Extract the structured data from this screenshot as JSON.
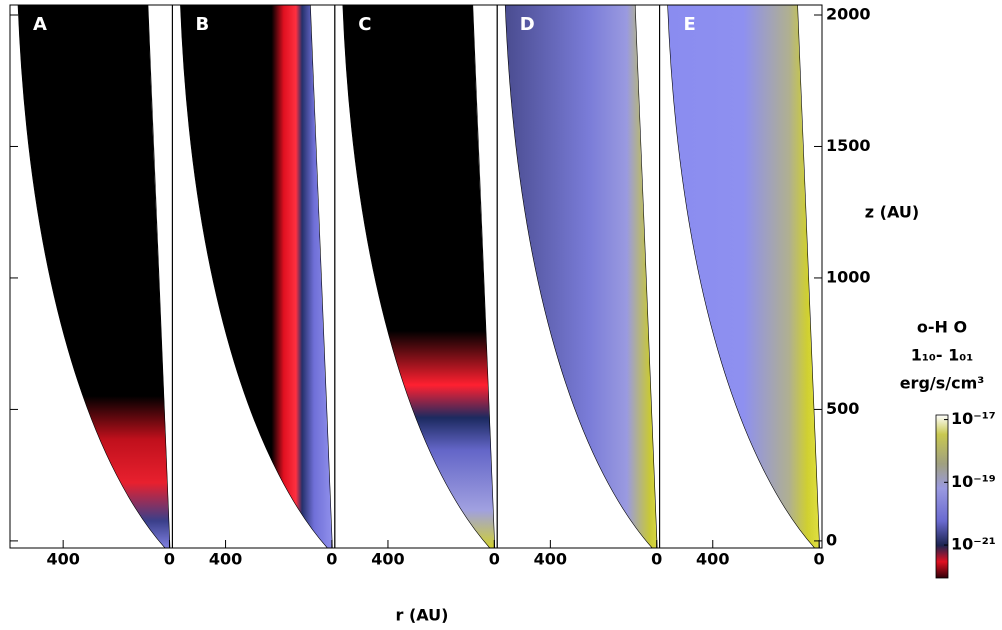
{
  "chart_data": {
    "type": "panels",
    "panels": [
      "A",
      "B",
      "C",
      "D",
      "E"
    ],
    "xlabel": "r (AU)",
    "ylabel": "z (AU)",
    "xlim": [
      600,
      -11
    ],
    "xticks": [
      400,
      0
    ],
    "ylim": [
      -27,
      2038
    ],
    "yticks": [
      0,
      500,
      1000,
      1500,
      2000
    ],
    "colorbar": {
      "title": [
        "o-H  O",
        "1₁₀- 1₀₁",
        "erg/s/cm³"
      ],
      "log": true,
      "lim": [
        8.9e-23,
        1.4e-17
      ],
      "ticks": [
        {
          "value": 1e-17,
          "label": "10⁻¹⁷"
        },
        {
          "value": 1e-19,
          "label": "10⁻¹⁹"
        },
        {
          "value": 1e-21,
          "label": "10⁻²¹"
        }
      ]
    }
  }
}
